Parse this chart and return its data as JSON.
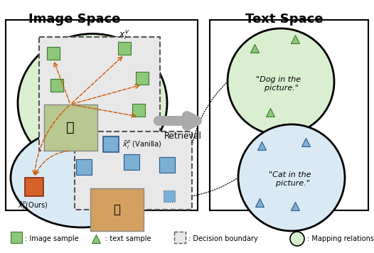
{
  "title_left": "Image Space",
  "title_right": "Text Space",
  "retrieval_label": "Retrieval",
  "dog_text": "\"Dog in the\n  picture.\"",
  "cat_text": "\"Cat in the\n  picture.\"",
  "green_square_color": "#8dc87a",
  "blue_square_color": "#7bafd4",
  "orange_square_color": "#d4622a",
  "green_tri_color": "#8dc87a",
  "blue_tri_color": "#7bafd4",
  "green_circle_fill": "#daefd0",
  "blue_circle_fill": "#daeaf5",
  "fig_bg": "#ffffff"
}
